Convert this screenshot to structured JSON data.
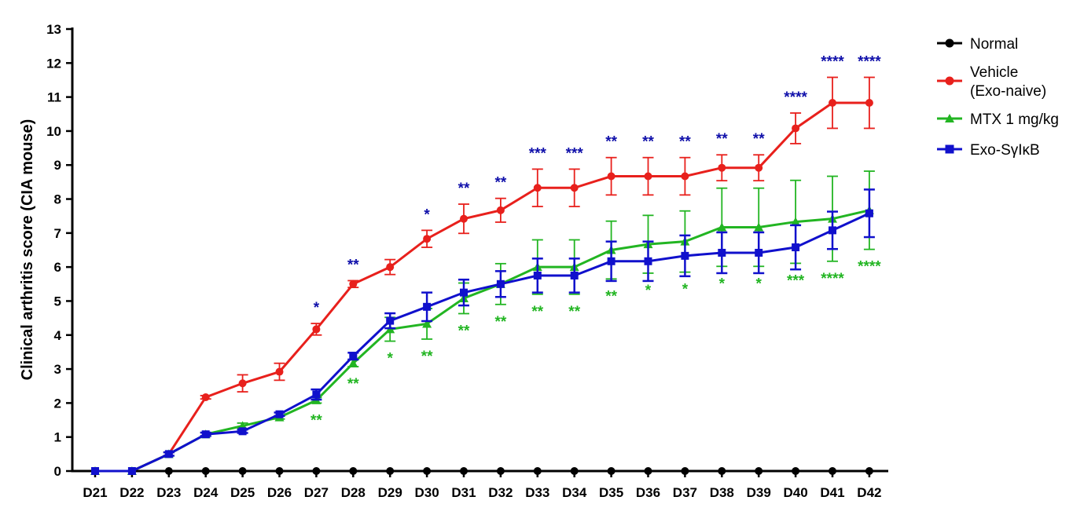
{
  "chart_data": {
    "type": "line",
    "ylabel": "Clinical arthritis score (CIA mouse)",
    "xlabel": "",
    "ylim": [
      0,
      13
    ],
    "yticks": [
      0,
      1,
      2,
      3,
      4,
      5,
      6,
      7,
      8,
      9,
      10,
      11,
      12,
      13
    ],
    "categories": [
      "D21",
      "D22",
      "D23",
      "D24",
      "D25",
      "D26",
      "D27",
      "D28",
      "D29",
      "D30",
      "D31",
      "D32",
      "D33",
      "D34",
      "D35",
      "D36",
      "D37",
      "D38",
      "D39",
      "D40",
      "D41",
      "D42"
    ],
    "legend_position": "top-right",
    "series": [
      {
        "name": "Normal",
        "color": "#000000",
        "marker": "circle",
        "values": [
          0,
          0,
          0,
          0,
          0,
          0,
          0,
          0,
          0,
          0,
          0,
          0,
          0,
          0,
          0,
          0,
          0,
          0,
          0,
          0,
          0,
          0
        ],
        "errors": [
          0,
          0,
          0,
          0,
          0,
          0,
          0,
          0,
          0,
          0,
          0,
          0,
          0,
          0,
          0,
          0,
          0,
          0,
          0,
          0,
          0,
          0
        ]
      },
      {
        "name": "Vehicle\n(Exo-naive)",
        "color": "#e8201c",
        "marker": "circle",
        "values": [
          0,
          0,
          0.5,
          2.17,
          2.58,
          2.92,
          4.17,
          5.5,
          6.0,
          6.83,
          7.42,
          7.67,
          8.33,
          8.33,
          8.67,
          8.67,
          8.67,
          8.92,
          8.92,
          10.08,
          10.83,
          10.83
        ],
        "errors": [
          0,
          0,
          0.05,
          0.05,
          0.25,
          0.25,
          0.17,
          0.1,
          0.22,
          0.25,
          0.43,
          0.35,
          0.55,
          0.55,
          0.55,
          0.55,
          0.55,
          0.38,
          0.38,
          0.45,
          0.75,
          0.75
        ]
      },
      {
        "name": "MTX 1 mg/kg",
        "color": "#22b522",
        "marker": "triangle",
        "values": [
          0,
          0,
          0.5,
          1.08,
          1.33,
          1.58,
          2.08,
          3.17,
          4.17,
          4.33,
          5.08,
          5.5,
          6.0,
          6.0,
          6.5,
          6.67,
          6.75,
          7.17,
          7.17,
          7.33,
          7.42,
          7.67
        ],
        "errors": [
          0,
          0,
          0.05,
          0.05,
          0.08,
          0.05,
          0.08,
          0.1,
          0.35,
          0.45,
          0.45,
          0.6,
          0.8,
          0.8,
          0.85,
          0.85,
          0.9,
          1.15,
          1.15,
          1.22,
          1.25,
          1.15
        ]
      },
      {
        "name": "Exo-SγIκB",
        "color": "#1010cc",
        "marker": "square",
        "values": [
          0,
          0,
          0.5,
          1.08,
          1.17,
          1.67,
          2.25,
          3.38,
          4.42,
          4.83,
          5.25,
          5.5,
          5.75,
          5.75,
          6.17,
          6.17,
          6.33,
          6.42,
          6.42,
          6.58,
          7.08,
          7.58
        ],
        "errors": [
          0,
          0,
          0.05,
          0.05,
          0.05,
          0.05,
          0.15,
          0.1,
          0.22,
          0.42,
          0.38,
          0.38,
          0.5,
          0.5,
          0.58,
          0.58,
          0.6,
          0.6,
          0.6,
          0.65,
          0.55,
          0.7
        ]
      }
    ],
    "significance": {
      "vehicle_vs_normal": {
        "color": "#1010aa",
        "labels": [
          "",
          "",
          "",
          "",
          "",
          "",
          "*",
          "**",
          "",
          "*",
          "**",
          "**",
          "***",
          "***",
          "**",
          "**",
          "**",
          "**",
          "**",
          "****",
          "****",
          "****"
        ]
      },
      "treatment": {
        "color": "#22b522",
        "labels": [
          "",
          "",
          "",
          "",
          "",
          "",
          "**",
          "**",
          "*",
          "**",
          "**",
          "**",
          "**",
          "**",
          "**",
          "*",
          "*",
          "*",
          "*",
          "***",
          "****",
          "****"
        ]
      }
    }
  }
}
